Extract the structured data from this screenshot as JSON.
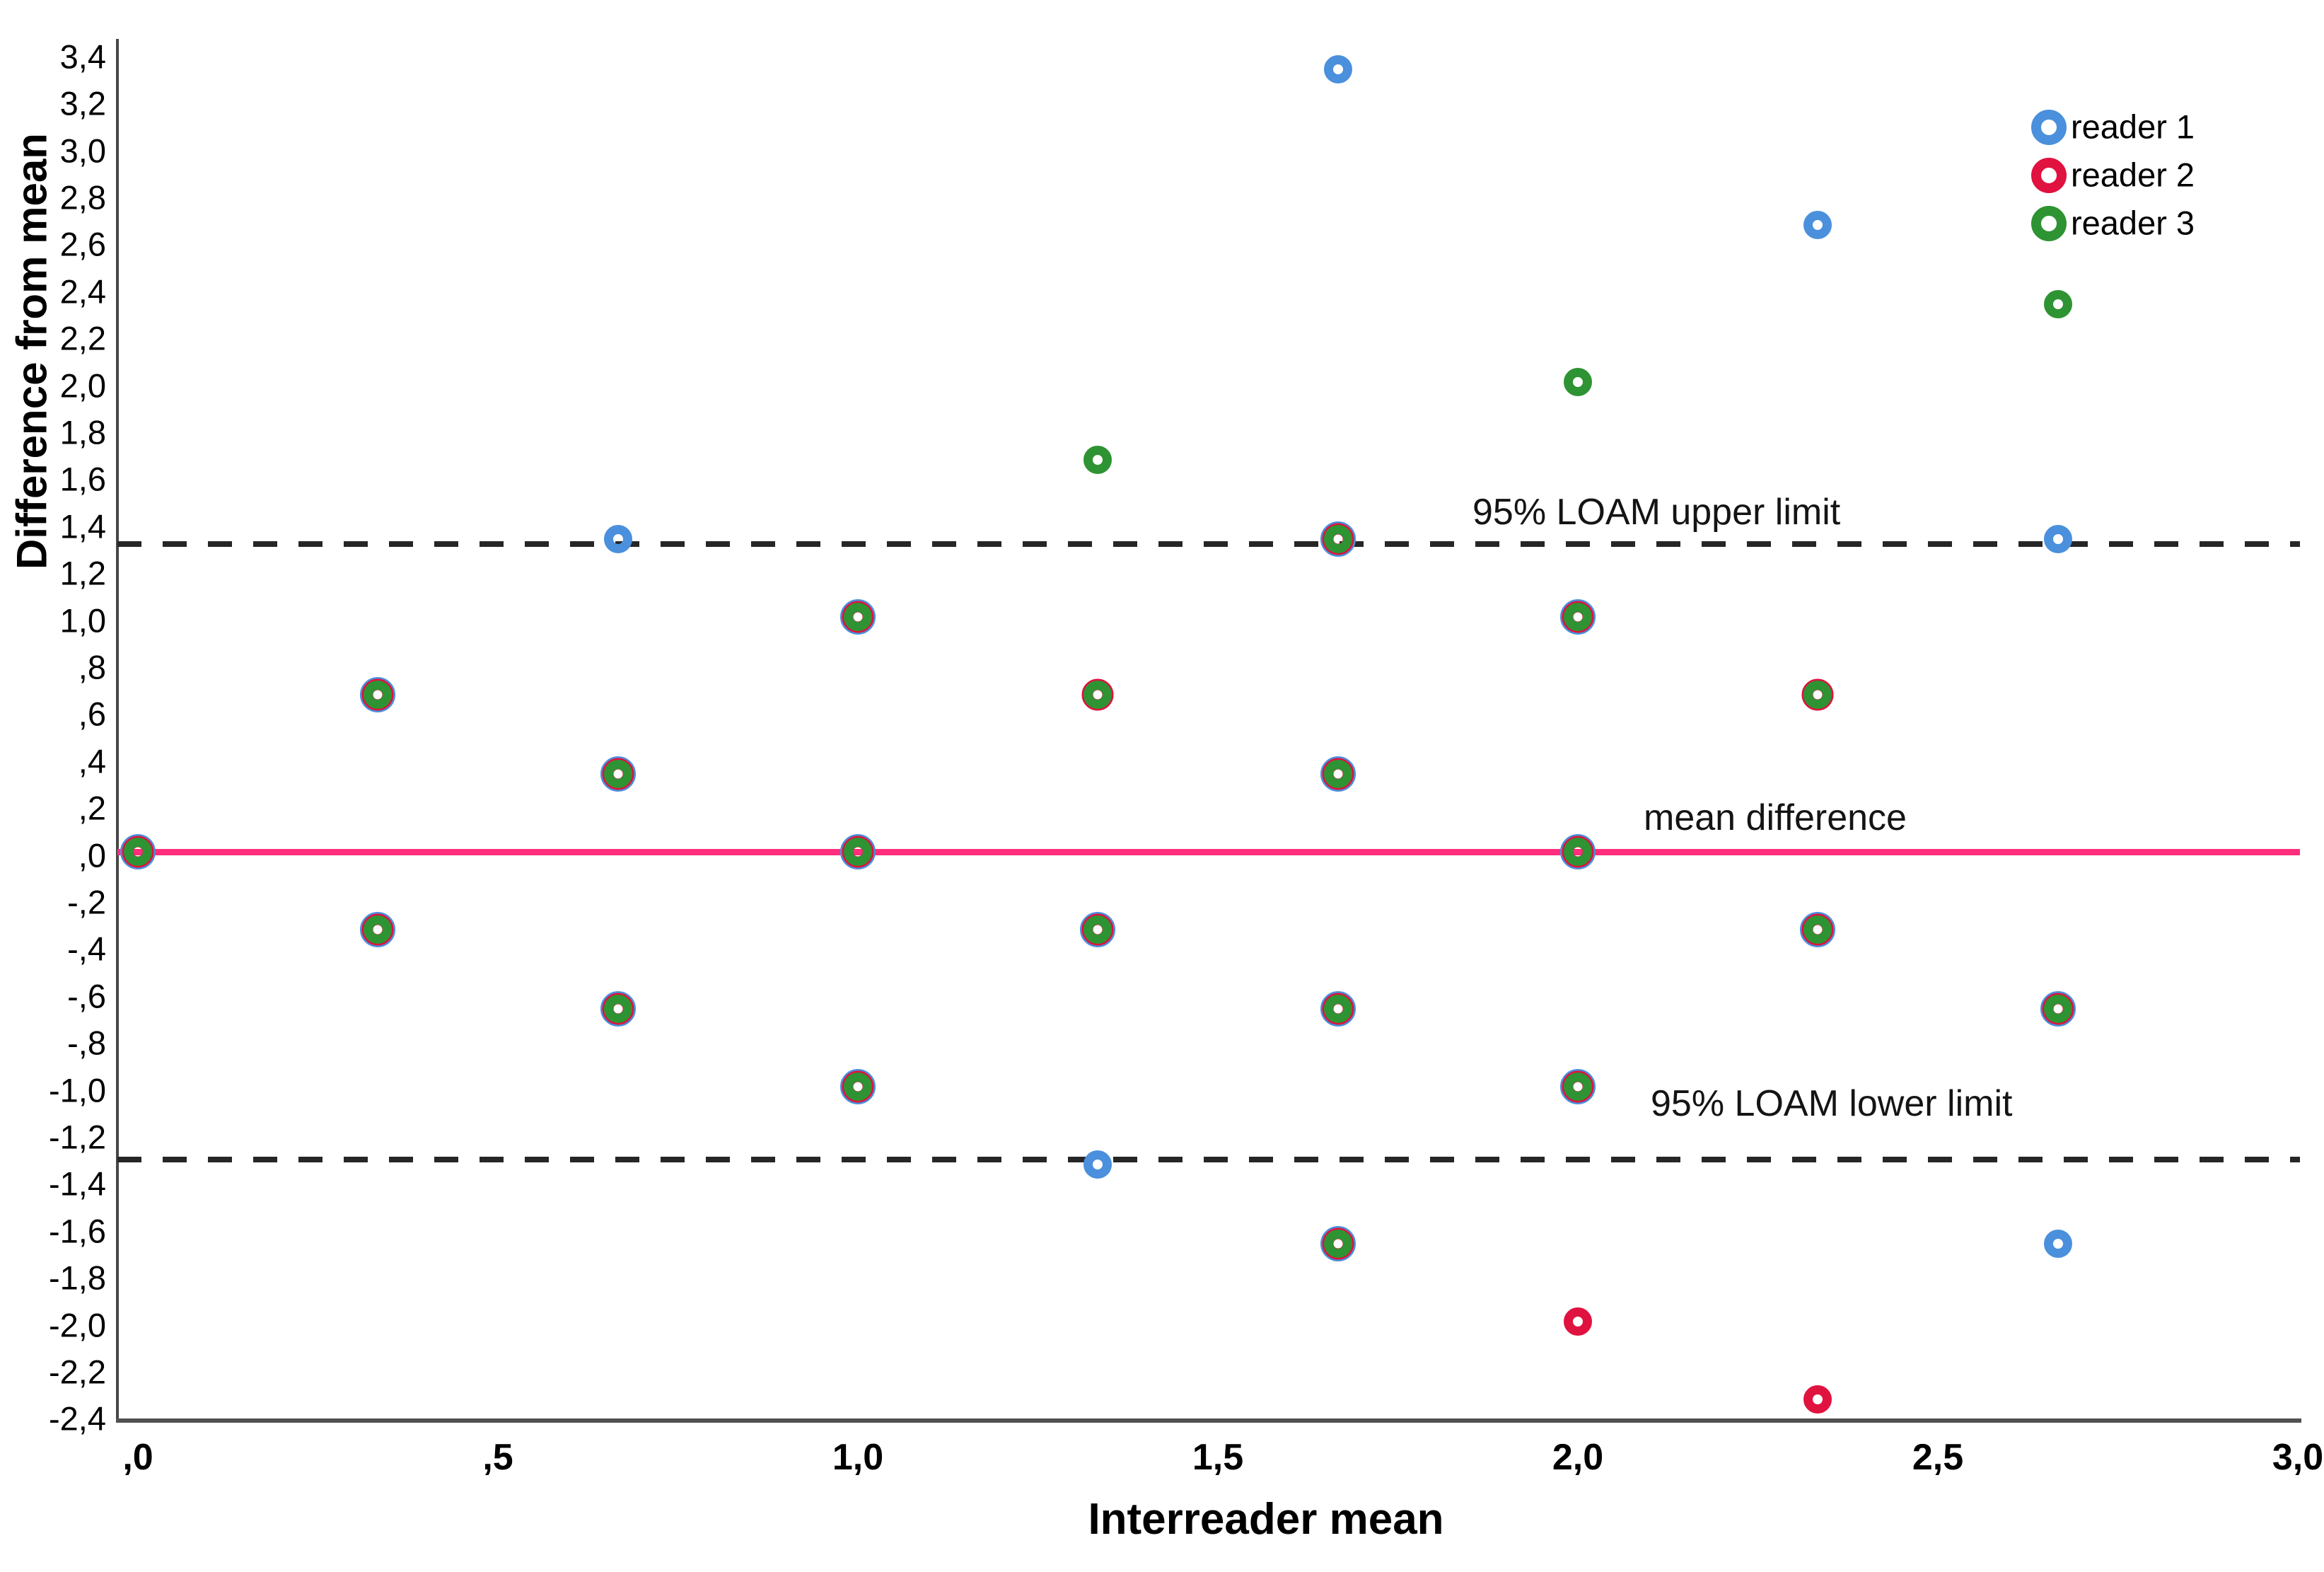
{
  "chart_data": {
    "type": "scatter",
    "title": "",
    "xlabel": "Interreader mean",
    "ylabel": "Difference from mean",
    "xlim": [
      0.0,
      3.0
    ],
    "ylim": [
      -2.4,
      3.4
    ],
    "grid": false,
    "legend_position": "top-right",
    "x_ticks": [
      {
        "value": 0.0,
        "label": ",0"
      },
      {
        "value": 0.5,
        "label": ",5"
      },
      {
        "value": 1.0,
        "label": "1,0"
      },
      {
        "value": 1.5,
        "label": "1,5"
      },
      {
        "value": 2.0,
        "label": "2,0"
      },
      {
        "value": 2.5,
        "label": "2,5"
      },
      {
        "value": 3.0,
        "label": "3,0"
      }
    ],
    "y_ticks": [
      {
        "value": 3.4,
        "label": "3,4"
      },
      {
        "value": 3.2,
        "label": "3,2"
      },
      {
        "value": 3.0,
        "label": "3,0"
      },
      {
        "value": 2.8,
        "label": "2,8"
      },
      {
        "value": 2.6,
        "label": "2,6"
      },
      {
        "value": 2.4,
        "label": "2,4"
      },
      {
        "value": 2.2,
        "label": "2,2"
      },
      {
        "value": 2.0,
        "label": "2,0"
      },
      {
        "value": 1.8,
        "label": "1,8"
      },
      {
        "value": 1.6,
        "label": "1,6"
      },
      {
        "value": 1.4,
        "label": "1,4"
      },
      {
        "value": 1.2,
        "label": "1,2"
      },
      {
        "value": 1.0,
        "label": "1,0"
      },
      {
        "value": 0.8,
        "label": ",8"
      },
      {
        "value": 0.6,
        "label": ",6"
      },
      {
        "value": 0.4,
        "label": ",4"
      },
      {
        "value": 0.2,
        "label": ",2"
      },
      {
        "value": 0.0,
        "label": ",0"
      },
      {
        "value": -0.2,
        "label": "-,2"
      },
      {
        "value": -0.4,
        "label": "-,4"
      },
      {
        "value": -0.6,
        "label": "-,6"
      },
      {
        "value": -0.8,
        "label": "-,8"
      },
      {
        "value": -1.0,
        "label": "-1,0"
      },
      {
        "value": -1.2,
        "label": "-1,2"
      },
      {
        "value": -1.4,
        "label": "-1,4"
      },
      {
        "value": -1.6,
        "label": "-1,6"
      },
      {
        "value": -1.8,
        "label": "-1,8"
      },
      {
        "value": -2.0,
        "label": "-2,0"
      },
      {
        "value": -2.2,
        "label": "-2,2"
      },
      {
        "value": -2.4,
        "label": "-2,4"
      }
    ],
    "reference_lines": {
      "upper": {
        "value": 1.33,
        "label": "95% LOAM upper limit",
        "style": "dashed",
        "color": "#262626"
      },
      "mean": {
        "value": 0.02,
        "label": "mean difference",
        "style": "solid",
        "color": "#ff2e7d"
      },
      "lower": {
        "value": -1.29,
        "label": "95% LOAM lower limit",
        "style": "dashed",
        "color": "#262626"
      }
    },
    "readers": {
      "1": {
        "name": "reader 1",
        "color": "#4a90dc"
      },
      "2": {
        "name": "reader 2",
        "color": "#e01240"
      },
      "3": {
        "name": "reader 3",
        "color": "#2e9332"
      }
    },
    "series": [
      {
        "name": "reader 1",
        "color": "#4a90dc",
        "points": [
          [
            0.0,
            0.02
          ],
          [
            0.333,
            0.69
          ],
          [
            0.333,
            -0.31
          ],
          [
            0.667,
            1.35
          ],
          [
            0.667,
            0.35
          ],
          [
            0.667,
            -0.65
          ],
          [
            1.0,
            1.02
          ],
          [
            1.0,
            0.02
          ],
          [
            1.0,
            -0.98
          ],
          [
            1.333,
            -0.31
          ],
          [
            1.333,
            -1.31
          ],
          [
            1.667,
            3.35
          ],
          [
            1.667,
            1.35
          ],
          [
            1.667,
            0.35
          ],
          [
            1.667,
            -0.65
          ],
          [
            1.667,
            -1.65
          ],
          [
            2.0,
            1.02
          ],
          [
            2.0,
            0.02
          ],
          [
            2.0,
            -0.98
          ],
          [
            2.333,
            2.69
          ],
          [
            2.333,
            -0.31
          ],
          [
            2.667,
            1.35
          ],
          [
            2.667,
            -0.65
          ],
          [
            2.667,
            -1.65
          ]
        ]
      },
      {
        "name": "reader 2",
        "color": "#e01240",
        "points": [
          [
            0.0,
            0.02
          ],
          [
            0.333,
            0.69
          ],
          [
            0.333,
            -0.31
          ],
          [
            0.667,
            0.35
          ],
          [
            0.667,
            -0.65
          ],
          [
            1.0,
            1.02
          ],
          [
            1.0,
            0.02
          ],
          [
            1.0,
            -0.98
          ],
          [
            1.333,
            0.69
          ],
          [
            1.333,
            -0.31
          ],
          [
            1.667,
            1.35
          ],
          [
            1.667,
            0.35
          ],
          [
            1.667,
            -0.65
          ],
          [
            1.667,
            -1.65
          ],
          [
            2.0,
            1.02
          ],
          [
            2.0,
            0.02
          ],
          [
            2.0,
            -0.98
          ],
          [
            2.0,
            -1.98
          ],
          [
            2.333,
            0.69
          ],
          [
            2.333,
            -0.31
          ],
          [
            2.333,
            -2.31
          ],
          [
            2.667,
            -0.65
          ]
        ]
      },
      {
        "name": "reader 3",
        "color": "#2e9332",
        "points": [
          [
            0.0,
            0.02
          ],
          [
            0.333,
            0.69
          ],
          [
            0.333,
            -0.31
          ],
          [
            0.667,
            0.35
          ],
          [
            0.667,
            -0.65
          ],
          [
            1.0,
            1.02
          ],
          [
            1.0,
            0.02
          ],
          [
            1.0,
            -0.98
          ],
          [
            1.333,
            1.69
          ],
          [
            1.333,
            0.69
          ],
          [
            1.333,
            -0.31
          ],
          [
            1.667,
            1.35
          ],
          [
            1.667,
            0.35
          ],
          [
            1.667,
            -0.65
          ],
          [
            1.667,
            -1.65
          ],
          [
            2.0,
            2.02
          ],
          [
            2.0,
            1.02
          ],
          [
            2.0,
            0.02
          ],
          [
            2.0,
            -0.98
          ],
          [
            2.333,
            0.69
          ],
          [
            2.333,
            -0.31
          ],
          [
            2.667,
            2.35
          ],
          [
            2.667,
            -0.65
          ]
        ]
      }
    ],
    "rendered_markers": [
      {
        "x": 0.0,
        "y": 0.02,
        "stack": [
          1,
          2,
          3
        ]
      },
      {
        "x": 0.333,
        "y": 0.69,
        "stack": [
          1,
          2,
          3
        ]
      },
      {
        "x": 0.333,
        "y": -0.31,
        "stack": [
          1,
          2,
          3
        ]
      },
      {
        "x": 0.667,
        "y": 1.35,
        "stack": [
          1
        ]
      },
      {
        "x": 0.667,
        "y": 0.35,
        "stack": [
          1,
          2,
          3
        ]
      },
      {
        "x": 0.667,
        "y": -0.65,
        "stack": [
          1,
          2,
          3
        ]
      },
      {
        "x": 1.0,
        "y": 1.02,
        "stack": [
          1,
          2,
          3
        ]
      },
      {
        "x": 1.0,
        "y": 0.02,
        "stack": [
          1,
          2,
          3
        ]
      },
      {
        "x": 1.0,
        "y": -0.98,
        "stack": [
          1,
          2,
          3
        ]
      },
      {
        "x": 1.333,
        "y": 1.69,
        "stack": [
          3
        ]
      },
      {
        "x": 1.333,
        "y": 0.69,
        "stack": [
          2,
          3
        ]
      },
      {
        "x": 1.333,
        "y": -0.31,
        "stack": [
          1,
          2,
          3
        ]
      },
      {
        "x": 1.333,
        "y": -1.31,
        "stack": [
          1
        ]
      },
      {
        "x": 1.667,
        "y": 3.35,
        "stack": [
          1
        ]
      },
      {
        "x": 1.667,
        "y": 1.35,
        "stack": [
          1,
          2,
          3
        ]
      },
      {
        "x": 1.667,
        "y": 0.35,
        "stack": [
          1,
          2,
          3
        ]
      },
      {
        "x": 1.667,
        "y": -0.65,
        "stack": [
          1,
          2,
          3
        ]
      },
      {
        "x": 1.667,
        "y": -1.65,
        "stack": [
          1,
          2,
          3
        ]
      },
      {
        "x": 2.0,
        "y": 2.02,
        "stack": [
          3
        ]
      },
      {
        "x": 2.0,
        "y": 1.02,
        "stack": [
          1,
          2,
          3
        ]
      },
      {
        "x": 2.0,
        "y": 0.02,
        "stack": [
          1,
          2,
          3
        ]
      },
      {
        "x": 2.0,
        "y": -0.98,
        "stack": [
          1,
          2,
          3
        ]
      },
      {
        "x": 2.0,
        "y": -1.98,
        "stack": [
          2
        ]
      },
      {
        "x": 2.333,
        "y": 2.69,
        "stack": [
          1
        ]
      },
      {
        "x": 2.333,
        "y": 0.69,
        "stack": [
          2,
          3
        ]
      },
      {
        "x": 2.333,
        "y": -0.31,
        "stack": [
          1,
          2,
          3
        ]
      },
      {
        "x": 2.333,
        "y": -2.31,
        "stack": [
          2
        ]
      },
      {
        "x": 2.667,
        "y": 2.35,
        "stack": [
          3
        ]
      },
      {
        "x": 2.667,
        "y": 1.35,
        "stack": [
          1
        ]
      },
      {
        "x": 2.667,
        "y": -0.65,
        "stack": [
          1,
          2,
          3
        ]
      },
      {
        "x": 2.667,
        "y": -1.65,
        "stack": [
          1
        ]
      }
    ],
    "legend": [
      {
        "label": "reader 1",
        "color": "#4a90dc"
      },
      {
        "label": "reader 2",
        "color": "#e01240"
      },
      {
        "label": "reader 3",
        "color": "#2e9332"
      }
    ]
  },
  "axes": {
    "x": {
      "title": "Interreader mean"
    },
    "y": {
      "title": "Difference from mean"
    }
  },
  "annotations": {
    "upper": "95% LOAM upper limit",
    "mean": "mean difference",
    "lower": "95% LOAM lower limit"
  },
  "colors": {
    "reader1_blue": "#4a90dc",
    "reader2_red": "#e01240",
    "reader3_green": "#2e9332",
    "mean_line_pink": "#ff2e7d",
    "dashed_black": "#262626",
    "axis_gray": "#4a4a4a"
  }
}
